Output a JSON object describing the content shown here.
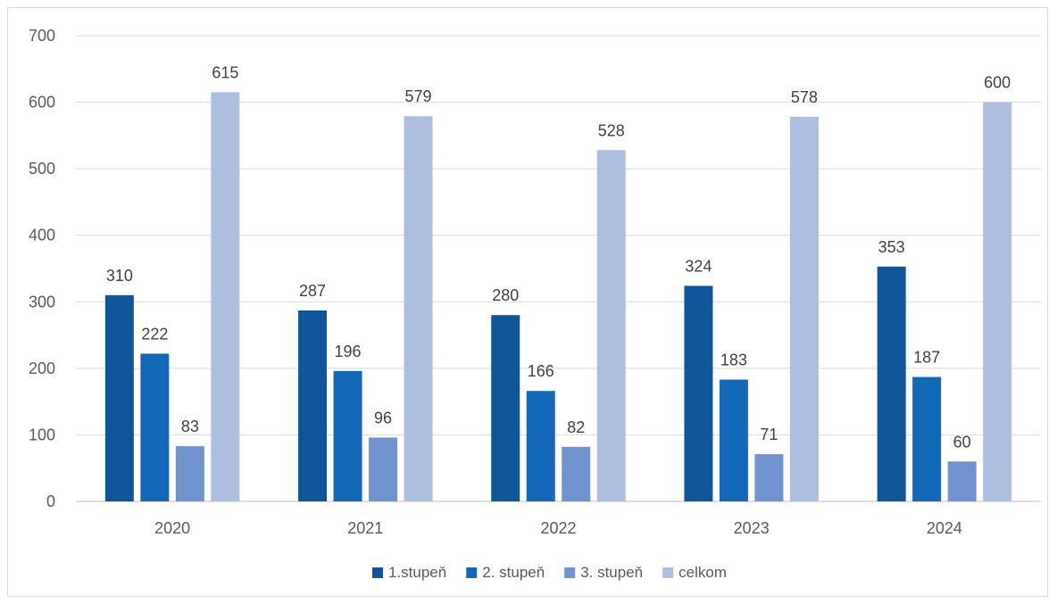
{
  "chart_data": {
    "type": "bar",
    "categories": [
      "2020",
      "2021",
      "2022",
      "2023",
      "2024"
    ],
    "series": [
      {
        "name": "1.stupeň",
        "color": "#0e5599",
        "values": [
          310,
          287,
          280,
          324,
          353
        ]
      },
      {
        "name": "2. stupeň",
        "color": "#1468b8",
        "values": [
          222,
          196,
          166,
          183,
          187
        ]
      },
      {
        "name": "3. stupeň",
        "color": "#7193d0",
        "values": [
          83,
          96,
          82,
          71,
          60
        ]
      },
      {
        "name": "celkom",
        "color": "#adbfe1",
        "values": [
          615,
          579,
          528,
          578,
          600
        ]
      }
    ],
    "title": "",
    "xlabel": "",
    "ylabel": "",
    "ylim": [
      0,
      700
    ],
    "yticks": [
      "0",
      "100",
      "200",
      "300",
      "400",
      "500",
      "600",
      "700"
    ],
    "grid": true,
    "legend_position": "bottom",
    "data_labels": true
  }
}
